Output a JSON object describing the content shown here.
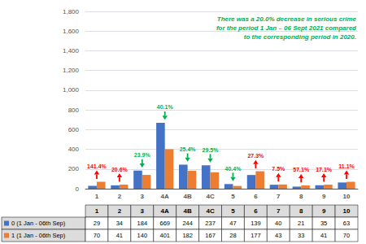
{
  "chart_data": {
    "type": "bar",
    "categories": [
      "1",
      "2",
      "3",
      "4A",
      "4B",
      "4C",
      "5",
      "6",
      "7",
      "8",
      "9",
      "10"
    ],
    "series": [
      {
        "name": "0 (1 Jan - 06th Sep)",
        "color": "#4472C4",
        "values": [
          29,
          34,
          184,
          669,
          244,
          237,
          47,
          139,
          40,
          21,
          35,
          63
        ]
      },
      {
        "name": "1 (1 Jan - 06th Sep)",
        "color": "#ED7D31",
        "values": [
          70,
          41,
          140,
          401,
          182,
          167,
          28,
          177,
          43,
          33,
          41,
          70
        ]
      }
    ],
    "ylim": [
      0,
      1800
    ],
    "yticks": [
      0,
      200,
      400,
      600,
      800,
      1000,
      1200,
      1400,
      1600,
      1800
    ],
    "grid": true,
    "annotation": {
      "text": "There was a 20.0% decrease in serious crime\nfor the period 1 Jan – 06 Sept 2021 compared\nto the corresponding period in 2020.",
      "color": "#00B050"
    },
    "changes": {
      "labels": [
        "141.4%",
        "20.6%",
        "23.9%",
        "40.1%",
        "25.4%",
        "29.5%",
        "40.4%",
        "27.3%",
        "7.5%",
        "57.1%",
        "17.1%",
        "11.1%"
      ],
      "direction": [
        "up",
        "up",
        "down",
        "down",
        "down",
        "down",
        "down",
        "up",
        "up",
        "up",
        "up",
        "up"
      ],
      "colors": [
        "#FF0000",
        "#FF0000",
        "#00B050",
        "#00B050",
        "#00B050",
        "#00B050",
        "#00B050",
        "#FF0000",
        "#FF0000",
        "#FF0000",
        "#FF0000",
        "#FF0000"
      ]
    }
  }
}
